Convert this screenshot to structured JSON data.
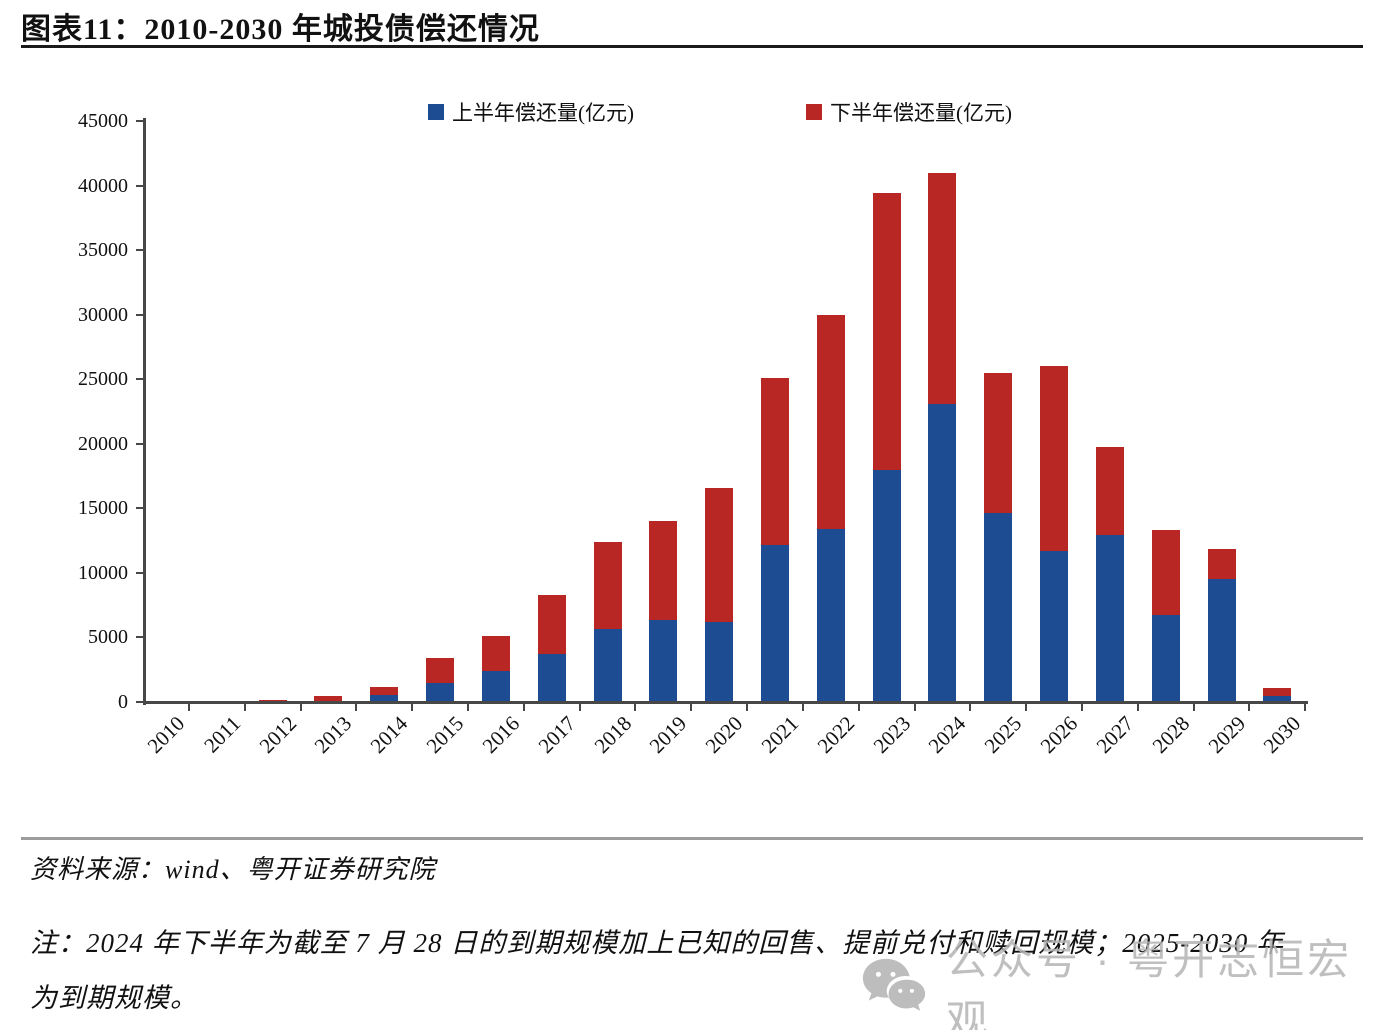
{
  "title": "图表11：2010-2030 年城投债偿还情况",
  "legend": {
    "first_half_label": "上半年偿还量(亿元)",
    "second_half_label": "下半年偿还量(亿元)"
  },
  "chart_data": {
    "type": "bar",
    "stacked": true,
    "title": "2010-2030 年城投债偿还情况",
    "categories": [
      "2010",
      "2011",
      "2012",
      "2013",
      "2014",
      "2015",
      "2016",
      "2017",
      "2018",
      "2019",
      "2020",
      "2021",
      "2022",
      "2023",
      "2024",
      "2025",
      "2026",
      "2027",
      "2028",
      "2029",
      "2030"
    ],
    "series": [
      {
        "name": "上半年偿还量(亿元)",
        "color": "#1E4C93",
        "values": [
          10,
          20,
          30,
          100,
          540,
          1470,
          2400,
          3720,
          5660,
          6360,
          6200,
          12170,
          13410,
          18000,
          23100,
          14650,
          11700,
          12940,
          6740,
          9530,
          470
        ]
      },
      {
        "name": "下半年偿还量(亿元)",
        "color": "#B82723",
        "values": [
          10,
          30,
          120,
          340,
          620,
          1940,
          2750,
          4570,
          6740,
          7670,
          10390,
          12940,
          16590,
          21450,
          17900,
          10850,
          14340,
          6820,
          6590,
          2330,
          620
        ]
      }
    ],
    "ylabel": "",
    "xlabel": "",
    "ylim": [
      0,
      45000
    ],
    "ytick_step": 5000,
    "grid": false,
    "legend_position": "top"
  },
  "footer": {
    "source": "资料来源：wind、粤开证券研究院",
    "note_line1": "注：2024 年下半年为截至 7 月 28 日的到期规模加上已知的回售、提前兑付和赎回规模；2025-2030 年",
    "note_line2": "为到期规模。"
  },
  "watermark": {
    "text": "公众号 · 粤开志恒宏观",
    "icon": "wechat-icon"
  },
  "colors": {
    "blue": "#1E4C93",
    "red": "#B82723",
    "axis": "#474747",
    "divider": "#9C9C9C",
    "watermark": "#B5B5B5"
  }
}
